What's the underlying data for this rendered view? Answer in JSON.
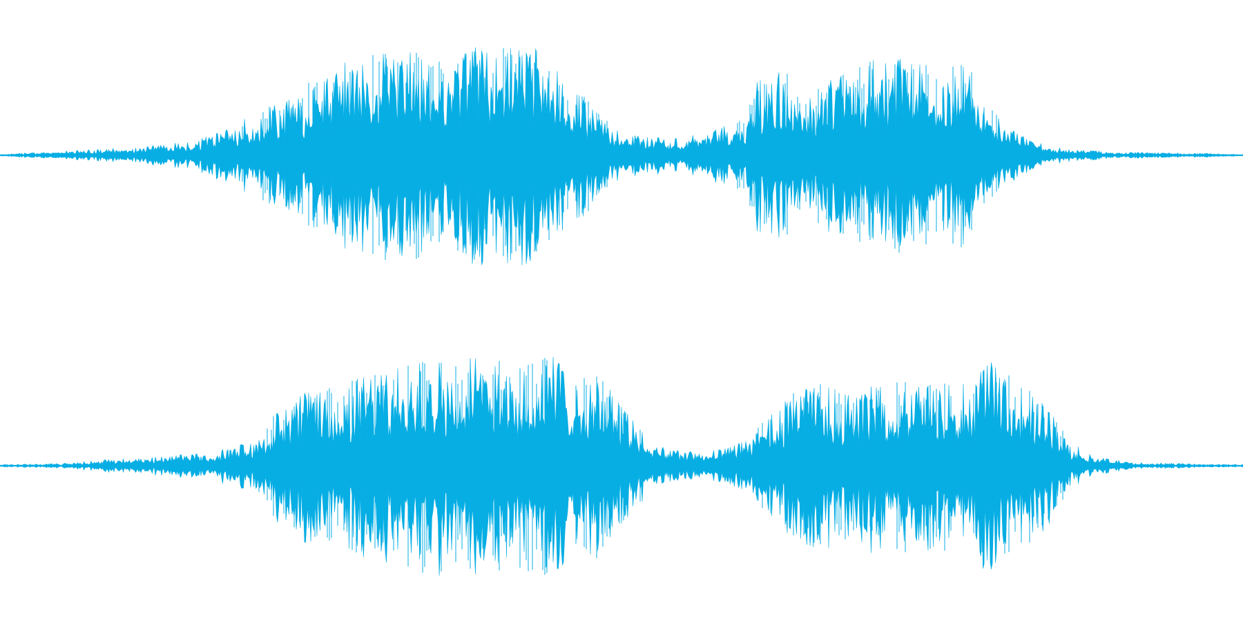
{
  "waveform": {
    "channel_count": 2,
    "wave_color": "#07AEE4",
    "background_color": "#FFFFFF",
    "channels": [
      {
        "name": "",
        "envelope": [
          [
            0.0,
            0.01
          ],
          [
            0.04,
            0.03
          ],
          [
            0.08,
            0.05
          ],
          [
            0.12,
            0.08
          ],
          [
            0.15,
            0.12
          ],
          [
            0.18,
            0.22
          ],
          [
            0.21,
            0.38
          ],
          [
            0.24,
            0.55
          ],
          [
            0.26,
            0.72
          ],
          [
            0.28,
            0.82
          ],
          [
            0.3,
            0.92
          ],
          [
            0.32,
            0.86
          ],
          [
            0.34,
            0.9
          ],
          [
            0.36,
            0.84
          ],
          [
            0.38,
            0.96
          ],
          [
            0.4,
            0.9
          ],
          [
            0.42,
            0.97
          ],
          [
            0.44,
            0.86
          ],
          [
            0.46,
            0.62
          ],
          [
            0.48,
            0.38
          ],
          [
            0.5,
            0.22
          ],
          [
            0.52,
            0.17
          ],
          [
            0.54,
            0.14
          ],
          [
            0.56,
            0.2
          ],
          [
            0.58,
            0.28
          ],
          [
            0.6,
            0.35
          ],
          [
            0.61,
            0.7
          ],
          [
            0.62,
            0.65
          ],
          [
            0.63,
            0.75
          ],
          [
            0.65,
            0.55
          ],
          [
            0.67,
            0.7
          ],
          [
            0.69,
            0.75
          ],
          [
            0.7,
            0.82
          ],
          [
            0.72,
            0.84
          ],
          [
            0.74,
            0.78
          ],
          [
            0.76,
            0.8
          ],
          [
            0.78,
            0.82
          ],
          [
            0.79,
            0.55
          ],
          [
            0.81,
            0.25
          ],
          [
            0.83,
            0.12
          ],
          [
            0.86,
            0.05
          ],
          [
            0.9,
            0.03
          ],
          [
            0.95,
            0.02
          ],
          [
            1.0,
            0.01
          ]
        ]
      },
      {
        "name": "",
        "envelope": [
          [
            0.0,
            0.01
          ],
          [
            0.05,
            0.02
          ],
          [
            0.09,
            0.06
          ],
          [
            0.13,
            0.08
          ],
          [
            0.17,
            0.12
          ],
          [
            0.2,
            0.2
          ],
          [
            0.22,
            0.45
          ],
          [
            0.25,
            0.68
          ],
          [
            0.28,
            0.72
          ],
          [
            0.3,
            0.82
          ],
          [
            0.32,
            0.88
          ],
          [
            0.34,
            1.0
          ],
          [
            0.36,
            0.92
          ],
          [
            0.38,
            0.94
          ],
          [
            0.4,
            0.9
          ],
          [
            0.42,
            0.88
          ],
          [
            0.44,
            0.94
          ],
          [
            0.46,
            0.9
          ],
          [
            0.48,
            0.78
          ],
          [
            0.5,
            0.55
          ],
          [
            0.52,
            0.25
          ],
          [
            0.54,
            0.14
          ],
          [
            0.56,
            0.13
          ],
          [
            0.58,
            0.14
          ],
          [
            0.6,
            0.22
          ],
          [
            0.62,
            0.45
          ],
          [
            0.64,
            0.65
          ],
          [
            0.66,
            0.72
          ],
          [
            0.68,
            0.62
          ],
          [
            0.7,
            0.7
          ],
          [
            0.72,
            0.74
          ],
          [
            0.74,
            0.68
          ],
          [
            0.76,
            0.72
          ],
          [
            0.78,
            0.76
          ],
          [
            0.8,
            0.9
          ],
          [
            0.82,
            0.7
          ],
          [
            0.84,
            0.55
          ],
          [
            0.86,
            0.22
          ],
          [
            0.88,
            0.08
          ],
          [
            0.91,
            0.03
          ],
          [
            0.95,
            0.02
          ],
          [
            1.0,
            0.01
          ]
        ]
      }
    ]
  }
}
